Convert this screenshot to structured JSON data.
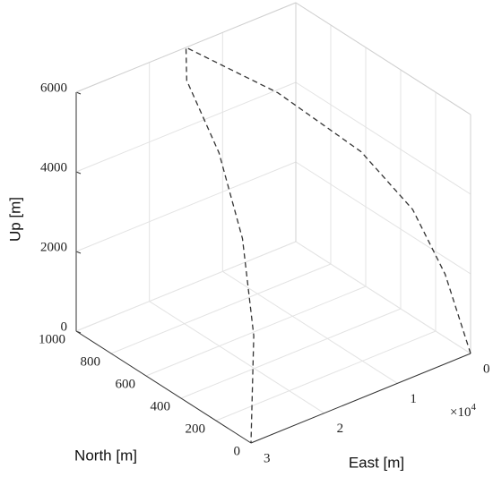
{
  "chart_data": {
    "type": "line3d",
    "xlabel": "East [m]",
    "ylabel": "North [m]",
    "zlabel": "Up [m]",
    "xlim": [
      0,
      30000
    ],
    "ylim": [
      0,
      1000
    ],
    "zlim": [
      0,
      6000
    ],
    "xticks": [
      {
        "value": 0,
        "label": "0"
      },
      {
        "value": 10000,
        "label": "1"
      },
      {
        "value": 20000,
        "label": "2"
      },
      {
        "value": 30000,
        "label": "3"
      }
    ],
    "xexponent": {
      "base": "×10",
      "power": "4"
    },
    "yticks": [
      0,
      200,
      400,
      600,
      800,
      1000
    ],
    "zticks": [
      0,
      2000,
      4000,
      6000
    ],
    "grid": true,
    "series": [
      {
        "color": "#333333",
        "linestyle": "dashed",
        "x": [
          0,
          3000,
          6000,
          9000,
          12000,
          15000,
          18000,
          21000,
          24000,
          27000,
          30000
        ],
        "y": [
          0,
          20,
          80,
          250,
          600,
          1000,
          870,
          560,
          300,
          110,
          0
        ],
        "z": [
          0,
          2160,
          3840,
          5040,
          5760,
          6000,
          5760,
          5040,
          3840,
          2160,
          0
        ]
      }
    ]
  }
}
